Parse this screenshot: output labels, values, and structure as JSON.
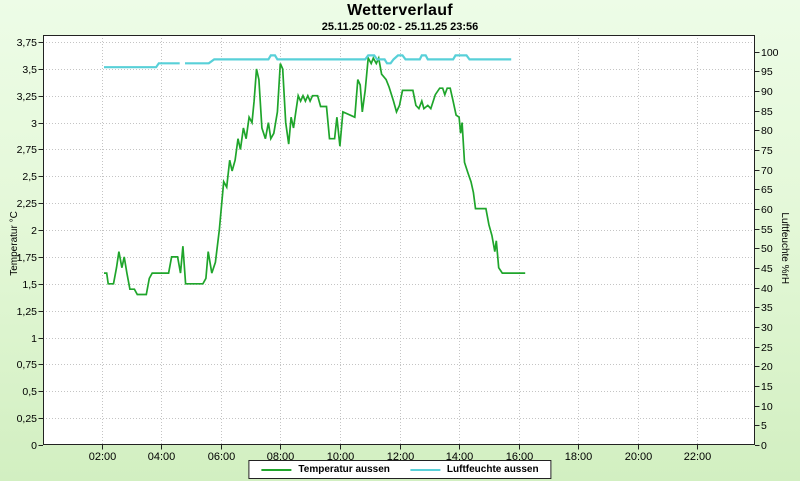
{
  "header": {
    "title": "Wetterverlauf",
    "subtitle": "25.11.25 00:02 - 25.11.25 23:56"
  },
  "legend": {
    "items": [
      {
        "label": "Temperatur aussen",
        "color": "#1fa52b"
      },
      {
        "label": "Luftfeuchte aussen",
        "color": "#58d0d8"
      }
    ]
  },
  "colors": {
    "plot_background": "#ffffff",
    "plot_border": "#222222",
    "gridline": "#c4c4c4",
    "temperature_line": "#1fa52b",
    "humidity_line": "#58d0d8"
  },
  "chart_data": {
    "type": "line",
    "title": "Wetterverlauf",
    "subtitle": "25.11.25 00:02 - 25.11.25 23:56",
    "grid": true,
    "legend_position": "bottom",
    "x_axis": {
      "kind": "time-of-day",
      "start_hour": 0.033,
      "end_hour": 23.933,
      "tick_hours": [
        2,
        4,
        6,
        8,
        10,
        12,
        14,
        16,
        18,
        20,
        22
      ],
      "tick_labels": [
        "02:00",
        "04:00",
        "06:00",
        "08:00",
        "10:00",
        "12:00",
        "14:00",
        "16:00",
        "18:00",
        "20:00",
        "22:00"
      ]
    },
    "y_left": {
      "label": "Temperatur °C",
      "min": 0,
      "max": 3.75,
      "tick_step": 0.25,
      "tick_values": [
        0,
        0.25,
        0.5,
        0.75,
        1,
        1.25,
        1.5,
        1.75,
        2,
        2.25,
        2.5,
        2.75,
        3,
        3.25,
        3.5,
        3.75
      ],
      "tick_labels": [
        "0",
        "0,25",
        "0,5",
        "0,75",
        "1",
        "1,25",
        "1,5",
        "1,75",
        "2",
        "2,25",
        "2,5",
        "2,75",
        "3",
        "3,25",
        "3,5",
        "3,75"
      ]
    },
    "y_right": {
      "label": "Luftfeuchte %rH",
      "min": 0,
      "max": 100,
      "tick_step": 5,
      "tick_values": [
        0,
        5,
        10,
        15,
        20,
        25,
        30,
        35,
        40,
        45,
        50,
        55,
        60,
        65,
        70,
        75,
        80,
        85,
        90,
        95,
        100
      ],
      "tick_labels": [
        "0",
        "5",
        "10",
        "15",
        "20",
        "25",
        "30",
        "35",
        "40",
        "45",
        "50",
        "55",
        "60",
        "65",
        "70",
        "75",
        "80",
        "85",
        "90",
        "95",
        "100"
      ]
    },
    "series": [
      {
        "name": "Temperatur aussen",
        "axis": "left",
        "color": "#1fa52b",
        "unit": "°C",
        "points": [
          [
            2.08,
            1.6
          ],
          [
            2.17,
            1.6
          ],
          [
            2.22,
            1.5
          ],
          [
            2.4,
            1.5
          ],
          [
            2.5,
            1.65
          ],
          [
            2.58,
            1.8
          ],
          [
            2.68,
            1.65
          ],
          [
            2.76,
            1.75
          ],
          [
            2.85,
            1.6
          ],
          [
            2.95,
            1.45
          ],
          [
            3.1,
            1.45
          ],
          [
            3.2,
            1.4
          ],
          [
            3.5,
            1.4
          ],
          [
            3.6,
            1.55
          ],
          [
            3.7,
            1.6
          ],
          [
            4.25,
            1.6
          ],
          [
            4.35,
            1.75
          ],
          [
            4.55,
            1.75
          ],
          [
            4.65,
            1.6
          ],
          [
            4.73,
            1.85
          ],
          [
            4.82,
            1.5
          ],
          [
            5.4,
            1.5
          ],
          [
            5.5,
            1.55
          ],
          [
            5.58,
            1.8
          ],
          [
            5.7,
            1.6
          ],
          [
            5.82,
            1.7
          ],
          [
            5.95,
            2.0
          ],
          [
            6.1,
            2.45
          ],
          [
            6.2,
            2.4
          ],
          [
            6.3,
            2.65
          ],
          [
            6.38,
            2.55
          ],
          [
            6.48,
            2.65
          ],
          [
            6.58,
            2.85
          ],
          [
            6.66,
            2.75
          ],
          [
            6.76,
            2.95
          ],
          [
            6.85,
            2.85
          ],
          [
            6.95,
            3.05
          ],
          [
            7.05,
            3.0
          ],
          [
            7.12,
            3.2
          ],
          [
            7.2,
            3.5
          ],
          [
            7.28,
            3.4
          ],
          [
            7.38,
            2.95
          ],
          [
            7.5,
            2.85
          ],
          [
            7.6,
            3.0
          ],
          [
            7.68,
            2.85
          ],
          [
            7.78,
            2.9
          ],
          [
            7.9,
            3.1
          ],
          [
            8.0,
            3.55
          ],
          [
            8.08,
            3.5
          ],
          [
            8.18,
            3.0
          ],
          [
            8.28,
            2.8
          ],
          [
            8.36,
            3.05
          ],
          [
            8.44,
            2.95
          ],
          [
            8.52,
            3.1
          ],
          [
            8.6,
            3.25
          ],
          [
            8.68,
            3.2
          ],
          [
            8.76,
            3.25
          ],
          [
            8.84,
            3.2
          ],
          [
            8.92,
            3.25
          ],
          [
            9.0,
            3.2
          ],
          [
            9.08,
            3.25
          ],
          [
            9.25,
            3.25
          ],
          [
            9.35,
            3.15
          ],
          [
            9.55,
            3.15
          ],
          [
            9.65,
            2.85
          ],
          [
            9.82,
            2.85
          ],
          [
            9.9,
            3.05
          ],
          [
            10.0,
            2.78
          ],
          [
            10.1,
            3.1
          ],
          [
            10.5,
            3.05
          ],
          [
            10.6,
            3.4
          ],
          [
            10.68,
            3.35
          ],
          [
            10.75,
            3.1
          ],
          [
            10.85,
            3.3
          ],
          [
            10.95,
            3.6
          ],
          [
            11.05,
            3.55
          ],
          [
            11.12,
            3.6
          ],
          [
            11.22,
            3.55
          ],
          [
            11.3,
            3.6
          ],
          [
            11.4,
            3.45
          ],
          [
            11.55,
            3.4
          ],
          [
            11.65,
            3.33
          ],
          [
            11.8,
            3.2
          ],
          [
            11.9,
            3.1
          ],
          [
            12.0,
            3.16
          ],
          [
            12.1,
            3.3
          ],
          [
            12.45,
            3.3
          ],
          [
            12.55,
            3.16
          ],
          [
            12.65,
            3.13
          ],
          [
            12.75,
            3.2
          ],
          [
            12.82,
            3.13
          ],
          [
            12.95,
            3.16
          ],
          [
            13.05,
            3.13
          ],
          [
            13.2,
            3.26
          ],
          [
            13.35,
            3.32
          ],
          [
            13.45,
            3.32
          ],
          [
            13.52,
            3.26
          ],
          [
            13.6,
            3.32
          ],
          [
            13.7,
            3.32
          ],
          [
            13.8,
            3.2
          ],
          [
            13.9,
            3.07
          ],
          [
            14.0,
            3.05
          ],
          [
            14.05,
            2.9
          ],
          [
            14.1,
            3.0
          ],
          [
            14.18,
            2.63
          ],
          [
            14.3,
            2.53
          ],
          [
            14.4,
            2.45
          ],
          [
            14.48,
            2.35
          ],
          [
            14.55,
            2.2
          ],
          [
            14.9,
            2.2
          ],
          [
            15.0,
            2.05
          ],
          [
            15.1,
            1.95
          ],
          [
            15.2,
            1.8
          ],
          [
            15.25,
            1.9
          ],
          [
            15.33,
            1.65
          ],
          [
            15.45,
            1.6
          ],
          [
            16.22,
            1.6
          ]
        ]
      },
      {
        "name": "Luftfeuchte aussen",
        "axis": "right",
        "color": "#58d0d8",
        "unit": "%rH",
        "points": [
          [
            2.08,
            96
          ],
          [
            3.83,
            96
          ],
          [
            3.92,
            97
          ],
          [
            4.62,
            97
          ],
          null,
          [
            4.8,
            97
          ],
          [
            5.6,
            97
          ],
          [
            5.78,
            98
          ],
          [
            7.6,
            98
          ],
          [
            7.68,
            99
          ],
          [
            7.82,
            99
          ],
          [
            7.9,
            98
          ],
          [
            10.85,
            98
          ],
          [
            10.95,
            99
          ],
          [
            11.15,
            99
          ],
          [
            11.25,
            98
          ],
          [
            11.5,
            98
          ],
          [
            11.58,
            97
          ],
          [
            11.7,
            97
          ],
          [
            11.8,
            98
          ],
          [
            11.95,
            99
          ],
          [
            12.1,
            99
          ],
          [
            12.2,
            98
          ],
          [
            12.68,
            98
          ],
          [
            12.75,
            99
          ],
          [
            12.88,
            99
          ],
          [
            12.95,
            98
          ],
          [
            13.8,
            98
          ],
          [
            13.88,
            99
          ],
          [
            14.25,
            99
          ],
          [
            14.35,
            98
          ],
          [
            15.75,
            98
          ]
        ]
      }
    ]
  }
}
